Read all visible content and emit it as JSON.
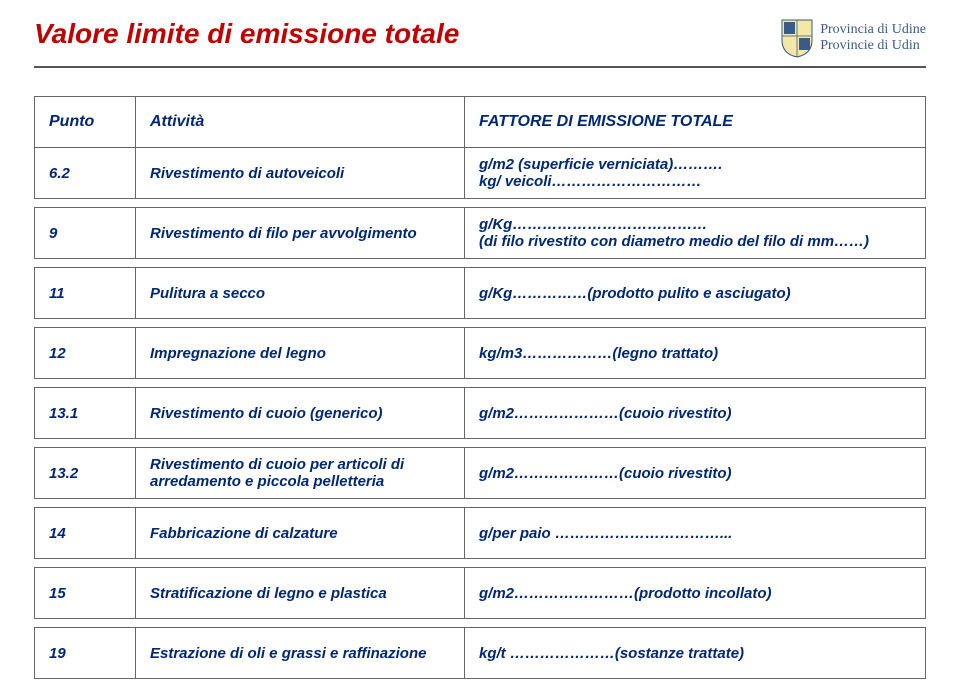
{
  "title": "Valore limite di emissione totale",
  "logo": {
    "line1": "Provincia di Udine",
    "line2": "Provincie di Udin"
  },
  "table": {
    "headers": {
      "punto": "Punto",
      "attivita": "Attività",
      "fattore": "FATTORE DI EMISSIONE TOTALE"
    },
    "rows": [
      {
        "punto": "6.2",
        "att": "Rivestimento di autoveicoli",
        "fact": "g/m2 (superficie verniciata)……….\nkg/ veicoli…………………………"
      },
      {
        "spacer": true
      },
      {
        "punto": "9",
        "att": "Rivestimento di filo per avvolgimento",
        "fact": "g/Kg…………………………………\n(di filo rivestito con diametro medio del filo di  mm……)"
      },
      {
        "spacer": true
      },
      {
        "punto": "11",
        "att": "Pulitura a secco",
        "fact": "g/Kg……………(prodotto pulito e asciugato)"
      },
      {
        "spacer": true
      },
      {
        "punto": "12",
        "att": "Impregnazione del legno",
        "fact": "kg/m3………………(legno trattato)"
      },
      {
        "spacer": true
      },
      {
        "punto": "13.1",
        "att": "Rivestimento di cuoio (generico)",
        "fact": "g/m2…………………(cuoio rivestito)"
      },
      {
        "spacer": true
      },
      {
        "punto": "13.2",
        "att": "Rivestimento di cuoio per articoli di arredamento e piccola pelletteria",
        "fact": "g/m2…………………(cuoio rivestito)"
      },
      {
        "spacer": true
      },
      {
        "punto": "14",
        "att": "Fabbricazione di calzature",
        "fact": "g/per paio ……………………………..."
      },
      {
        "spacer": true
      },
      {
        "punto": "15",
        "att": "Stratificazione di legno e plastica",
        "fact": "g/m2……………………(prodotto incollato)"
      },
      {
        "spacer": true
      },
      {
        "punto": "19",
        "att": "Estrazione di  oli e grassi e raffinazione",
        "fact": "kg/t …………………(sostanze trattate)"
      }
    ]
  }
}
